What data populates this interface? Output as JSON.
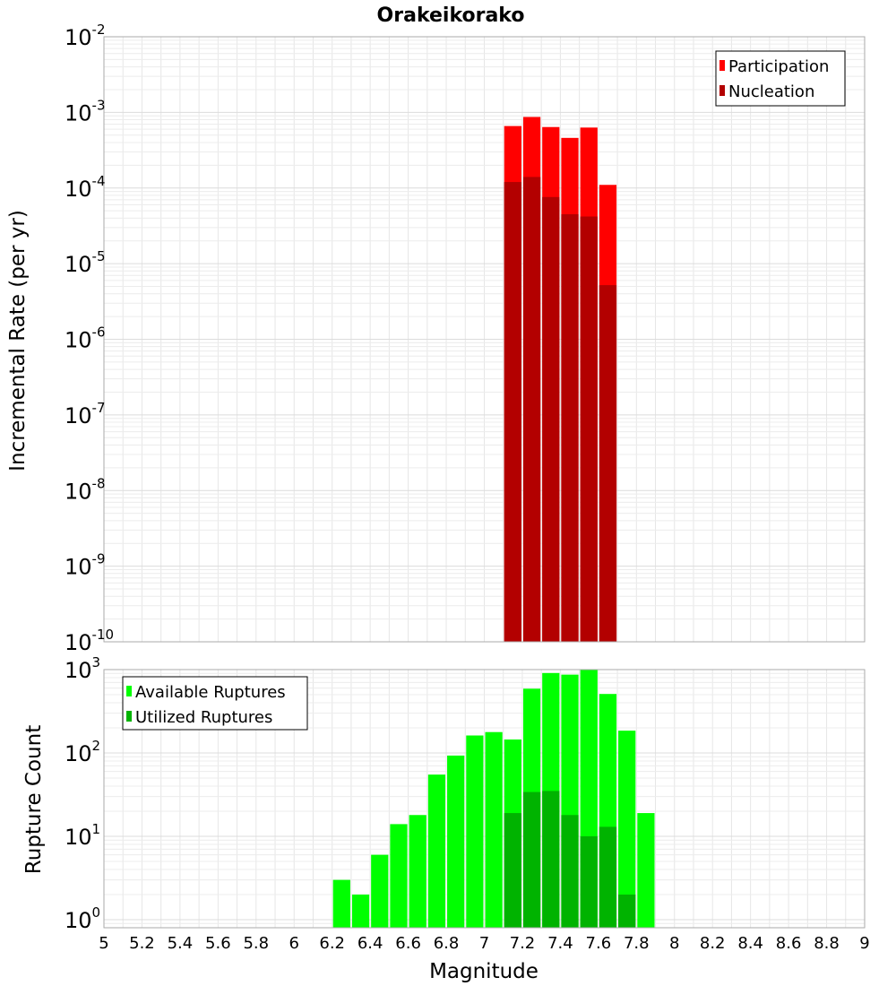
{
  "title": "Orakeikorako",
  "xlabel": "Magnitude",
  "x_ticks": [
    "5",
    "5.2",
    "5.4",
    "5.6",
    "5.8",
    "6",
    "6.2",
    "6.4",
    "6.6",
    "6.8",
    "7",
    "7.2",
    "7.4",
    "7.6",
    "7.8",
    "8",
    "8.2",
    "8.4",
    "8.6",
    "8.8",
    "9"
  ],
  "colors": {
    "participation": "#ff0000",
    "nucleation": "#b30000",
    "available": "#00ff00",
    "utilized": "#00b300",
    "grid": "#e6e6e6",
    "frame": "#aaaaaa"
  },
  "chart_data": [
    {
      "type": "bar",
      "ylabel": "Incremental Rate (per yr)",
      "yscale": "log",
      "ylim": [
        1e-10,
        0.01
      ],
      "xlim": [
        5,
        9
      ],
      "bin_width": 0.1,
      "y_ticks": [
        {
          "base": "10",
          "exp": "-10"
        },
        {
          "base": "10",
          "exp": "-9"
        },
        {
          "base": "10",
          "exp": "-8"
        },
        {
          "base": "10",
          "exp": "-7"
        },
        {
          "base": "10",
          "exp": "-6"
        },
        {
          "base": "10",
          "exp": "-5"
        },
        {
          "base": "10",
          "exp": "-4"
        },
        {
          "base": "10",
          "exp": "-3"
        },
        {
          "base": "10",
          "exp": "-2"
        }
      ],
      "legend": {
        "position": "top-right"
      },
      "series": [
        {
          "name": "Participation",
          "x": [
            7.15,
            7.25,
            7.35,
            7.45,
            7.55,
            7.65
          ],
          "values": [
            0.00066,
            0.00087,
            0.00064,
            0.00046,
            0.00063,
            0.00011
          ]
        },
        {
          "name": "Nucleation",
          "x": [
            7.15,
            7.25,
            7.35,
            7.45,
            7.55,
            7.65
          ],
          "values": [
            0.00012,
            0.00014,
            7.6e-05,
            4.5e-05,
            4.2e-05,
            5.2e-06
          ]
        }
      ]
    },
    {
      "type": "bar",
      "ylabel": "Rupture Count",
      "yscale": "log",
      "ylim": [
        0.8,
        1000
      ],
      "xlim": [
        5,
        9
      ],
      "bin_width": 0.1,
      "y_ticks": [
        {
          "base": "10",
          "exp": "0"
        },
        {
          "base": "10",
          "exp": "1"
        },
        {
          "base": "10",
          "exp": "2"
        },
        {
          "base": "10",
          "exp": "3"
        }
      ],
      "legend": {
        "position": "top-left"
      },
      "series": [
        {
          "name": "Available Ruptures",
          "x": [
            6.25,
            6.35,
            6.45,
            6.55,
            6.65,
            6.75,
            6.85,
            6.95,
            7.05,
            7.15,
            7.25,
            7.35,
            7.45,
            7.55,
            7.65,
            7.75,
            7.85
          ],
          "values": [
            3,
            2,
            6,
            14,
            18,
            55,
            93,
            162,
            178,
            145,
            590,
            910,
            870,
            1000,
            510,
            185,
            19
          ]
        },
        {
          "name": "Utilized Ruptures",
          "x": [
            7.15,
            7.25,
            7.35,
            7.45,
            7.55,
            7.65,
            7.75
          ],
          "values": [
            19,
            34,
            35,
            18,
            10,
            13,
            2
          ]
        }
      ]
    }
  ]
}
